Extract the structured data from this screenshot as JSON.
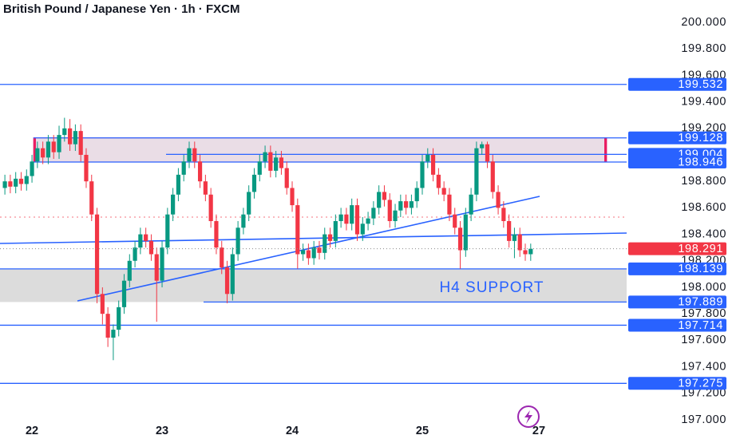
{
  "chart_data": {
    "type": "candlestick",
    "title": "British Pound / Japanese Yen · 1h · FXCM",
    "annotation": "H4 SUPPORT",
    "up_color": "#089981",
    "down_color": "#f23645",
    "level_color": "#2962ff",
    "x": [
      -5,
      -4,
      -3,
      -2,
      -1,
      0,
      1,
      2,
      3,
      4,
      5,
      6,
      7,
      8,
      9,
      10,
      11,
      12,
      13,
      14,
      15,
      16,
      17,
      18,
      19,
      20,
      21,
      22,
      23,
      24,
      25,
      26,
      27,
      28,
      29,
      30,
      31,
      32,
      33,
      34,
      35,
      36,
      37,
      38,
      39,
      40,
      41,
      42,
      43,
      44,
      45,
      46,
      47,
      48,
      49,
      50,
      51,
      52,
      53,
      54,
      55,
      56,
      57,
      58,
      59,
      60,
      61,
      62,
      63,
      64,
      65,
      66,
      67,
      68,
      69,
      70,
      71,
      72,
      73,
      74,
      75,
      76,
      77,
      78,
      79,
      80,
      81,
      82,
      83,
      84,
      85,
      86,
      87,
      88,
      89,
      90,
      91,
      92
    ],
    "open": [
      198.75,
      198.8,
      198.76,
      198.82,
      198.78,
      198.84,
      198.95,
      199.05,
      198.98,
      199.1,
      199.02,
      199.15,
      199.2,
      199.08,
      199.18,
      199.0,
      198.8,
      198.55,
      197.95,
      197.8,
      197.62,
      197.68,
      197.85,
      198.05,
      198.2,
      198.3,
      198.4,
      198.35,
      198.25,
      198.05,
      198.3,
      198.55,
      198.7,
      198.85,
      198.95,
      199.05,
      198.95,
      198.8,
      198.7,
      198.5,
      198.3,
      198.15,
      197.95,
      198.25,
      198.45,
      198.55,
      198.72,
      198.85,
      198.95,
      199.02,
      198.88,
      198.98,
      198.9,
      198.75,
      198.62,
      198.25,
      198.28,
      198.22,
      198.3,
      198.26,
      198.4,
      198.35,
      198.5,
      198.55,
      198.48,
      198.62,
      198.4,
      198.48,
      198.52,
      198.6,
      198.72,
      198.66,
      198.5,
      198.58,
      198.65,
      198.6,
      198.65,
      198.75,
      198.95,
      199.0,
      198.85,
      198.75,
      198.7,
      198.55,
      198.45,
      198.28,
      198.55,
      198.7,
      199.05,
      199.08,
      198.95,
      198.72,
      198.6,
      198.5,
      198.35,
      198.4,
      198.28,
      198.25
    ],
    "high": [
      198.85,
      198.85,
      198.87,
      198.87,
      198.89,
      199.0,
      199.1,
      199.1,
      199.15,
      199.15,
      199.22,
      199.28,
      199.27,
      199.23,
      199.23,
      199.05,
      198.85,
      198.6,
      198.0,
      197.85,
      197.72,
      197.9,
      198.1,
      198.25,
      198.35,
      198.45,
      198.45,
      198.4,
      198.3,
      198.35,
      198.6,
      198.75,
      198.9,
      199.0,
      199.1,
      199.1,
      199.0,
      198.85,
      198.75,
      198.55,
      198.35,
      198.2,
      198.3,
      198.5,
      198.6,
      198.77,
      198.9,
      199.0,
      199.07,
      199.07,
      199.03,
      199.03,
      198.95,
      198.8,
      198.67,
      198.33,
      198.33,
      198.35,
      198.35,
      198.45,
      198.45,
      198.55,
      198.6,
      198.6,
      198.67,
      198.67,
      198.53,
      198.57,
      198.65,
      198.77,
      198.77,
      198.71,
      198.63,
      198.7,
      198.7,
      198.7,
      198.8,
      199.0,
      199.05,
      199.05,
      198.9,
      198.8,
      198.75,
      198.6,
      198.5,
      198.6,
      198.75,
      199.1,
      199.1,
      199.1,
      199.0,
      198.77,
      198.65,
      198.55,
      198.45,
      198.45,
      198.33,
      198.33
    ],
    "low": [
      198.7,
      198.71,
      198.71,
      198.73,
      198.73,
      198.79,
      198.9,
      198.93,
      198.93,
      198.97,
      198.97,
      199.1,
      199.03,
      199.03,
      198.95,
      198.75,
      198.5,
      197.88,
      197.72,
      197.55,
      197.45,
      197.63,
      197.8,
      198.0,
      198.15,
      198.25,
      198.3,
      198.2,
      197.74,
      198.0,
      198.25,
      198.5,
      198.65,
      198.8,
      198.9,
      198.9,
      198.75,
      198.65,
      198.45,
      198.25,
      198.1,
      197.88,
      197.9,
      198.2,
      198.4,
      198.5,
      198.67,
      198.8,
      198.9,
      198.83,
      198.83,
      198.85,
      198.7,
      198.57,
      198.14,
      198.2,
      198.17,
      198.17,
      198.21,
      198.21,
      198.3,
      198.3,
      198.45,
      198.43,
      198.43,
      198.35,
      198.35,
      198.43,
      198.47,
      198.55,
      198.61,
      198.45,
      198.45,
      198.53,
      198.55,
      198.55,
      198.6,
      198.7,
      198.9,
      198.8,
      198.7,
      198.65,
      198.5,
      198.4,
      198.14,
      198.23,
      198.5,
      198.65,
      199.0,
      198.9,
      198.67,
      198.55,
      198.45,
      198.3,
      198.22,
      198.23,
      198.2,
      198.2
    ],
    "close": [
      198.8,
      198.76,
      198.82,
      198.78,
      198.84,
      198.95,
      199.05,
      198.98,
      199.1,
      199.02,
      199.15,
      199.2,
      199.08,
      199.18,
      199.0,
      198.8,
      198.55,
      197.95,
      197.8,
      197.62,
      197.68,
      197.85,
      198.05,
      198.2,
      198.3,
      198.4,
      198.35,
      198.25,
      198.05,
      198.3,
      198.55,
      198.7,
      198.85,
      198.95,
      199.05,
      198.95,
      198.8,
      198.7,
      198.5,
      198.3,
      198.15,
      197.95,
      198.25,
      198.45,
      198.55,
      198.72,
      198.85,
      198.95,
      199.02,
      198.88,
      198.98,
      198.9,
      198.75,
      198.62,
      198.25,
      198.28,
      198.22,
      198.3,
      198.26,
      198.4,
      198.35,
      198.5,
      198.55,
      198.48,
      198.62,
      198.4,
      198.48,
      198.52,
      198.6,
      198.72,
      198.66,
      198.5,
      198.58,
      198.65,
      198.6,
      198.65,
      198.75,
      198.95,
      199.0,
      198.85,
      198.75,
      198.7,
      198.55,
      198.45,
      198.28,
      198.55,
      198.7,
      199.05,
      199.08,
      198.95,
      198.72,
      198.6,
      198.5,
      198.35,
      198.4,
      198.28,
      198.25,
      198.291
    ],
    "levels": [
      199.532,
      199.128,
      199.004,
      198.946,
      198.139,
      197.889,
      197.714,
      197.275
    ],
    "xlim": [
      -5.9,
      109.7
    ],
    "ylim": [
      196.855,
      200.169
    ],
    "xticks": [
      {
        "value": 0,
        "label": "22"
      },
      {
        "value": 24,
        "label": "23"
      },
      {
        "value": 48,
        "label": "24"
      },
      {
        "value": 72,
        "label": "25"
      },
      {
        "value": 93.5,
        "label": "27"
      }
    ],
    "yticks": [
      {
        "value": 200,
        "label": "200.000"
      },
      {
        "value": 199.8,
        "label": "199.800"
      },
      {
        "value": 199.6,
        "label": "199.600"
      },
      {
        "value": 199.4,
        "label": "199.400"
      },
      {
        "value": 199.2,
        "label": "199.200"
      },
      {
        "value": 198.8,
        "label": "198.800"
      },
      {
        "value": 198.6,
        "label": "198.600"
      },
      {
        "value": 198.4,
        "label": "198.400"
      },
      {
        "value": 198.2,
        "label": "198.200"
      },
      {
        "value": 198,
        "label": "198.000"
      },
      {
        "value": 197.8,
        "label": "197.800"
      },
      {
        "value": 197.6,
        "label": "197.600"
      },
      {
        "value": 197.4,
        "label": "197.400"
      },
      {
        "value": 197.2,
        "label": "197.200"
      },
      {
        "value": 197,
        "label": "197.000"
      }
    ]
  }
}
